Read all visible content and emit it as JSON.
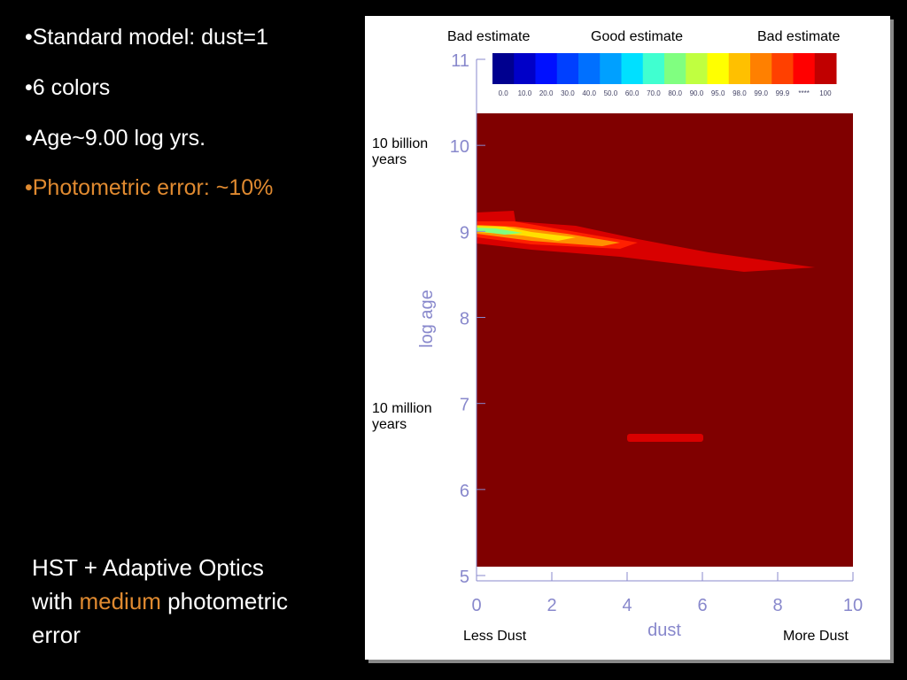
{
  "bullets": [
    "•Standard model: dust=1",
    "•6 colors",
    "•Age~9.00 log yrs.",
    "•Photometric error: ~10%"
  ],
  "caption": [
    "HST + Adaptive Optics with ",
    "medium",
    " photometric error"
  ],
  "chart_data": {
    "type": "contour",
    "xlabel": "dust",
    "ylabel": "log age",
    "xlim": [
      0,
      10
    ],
    "ylim": [
      5,
      11
    ],
    "xticks": [
      0,
      2,
      4,
      6,
      8,
      10
    ],
    "yticks": [
      5,
      6,
      7,
      8,
      9,
      10,
      11
    ],
    "colorbar": {
      "labels": [
        "0.0",
        "10.0",
        "20.0",
        "30.0",
        "40.0",
        "50.0",
        "60.0",
        "70.0",
        "80.0",
        "90.0",
        "95.0",
        "98.0",
        "99.0",
        "99.9",
        "****",
        "100"
      ],
      "colors": [
        "#00008f",
        "#0000c8",
        "#0010ff",
        "#0040ff",
        "#0070ff",
        "#00a0ff",
        "#00e0ff",
        "#40ffd0",
        "#80ff80",
        "#c0ff40",
        "#ffff00",
        "#ffc000",
        "#ff8000",
        "#ff4000",
        "#ff0000",
        "#c00000"
      ]
    },
    "annotations": {
      "top": [
        "Bad estimate",
        "Good estimate",
        "Bad estimate"
      ],
      "left": [
        "10 billion years",
        "10 million years"
      ],
      "bottom": [
        "Less Dust",
        "More Dust"
      ]
    }
  }
}
